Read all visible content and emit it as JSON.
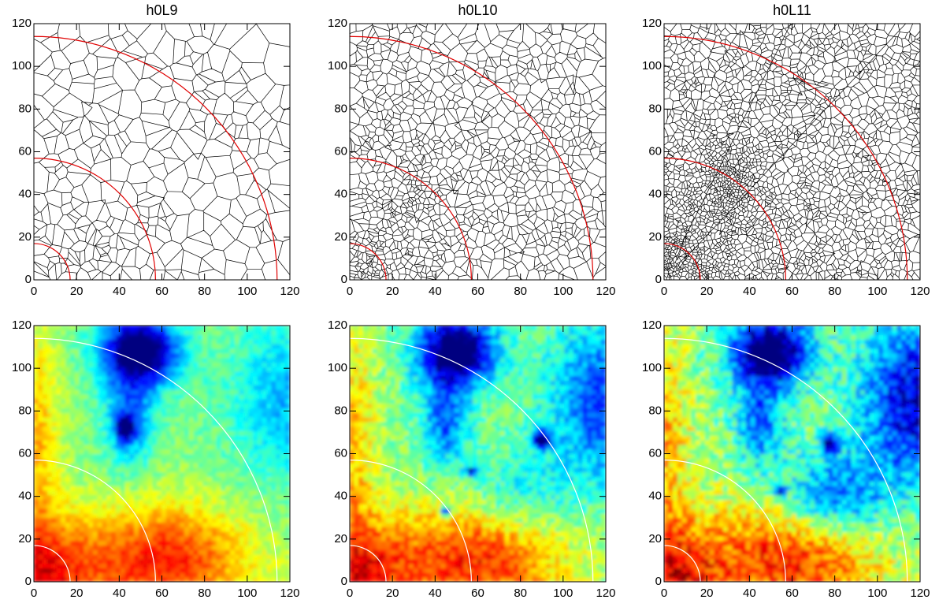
{
  "chart_data": [
    {
      "type": "mesh",
      "title": "h0L9",
      "points": 320,
      "xlim": [
        0,
        120
      ],
      "ylim": [
        0,
        120
      ],
      "xticks": [
        0,
        20,
        40,
        60,
        80,
        100,
        120
      ],
      "yticks": [
        0,
        20,
        40,
        60,
        80,
        100,
        120
      ],
      "circle_radii": [
        17,
        57,
        114
      ],
      "circle_color": "#e00000"
    },
    {
      "type": "mesh",
      "title": "h0L10",
      "points": 1100,
      "xlim": [
        0,
        120
      ],
      "ylim": [
        0,
        120
      ],
      "xticks": [
        0,
        20,
        40,
        60,
        80,
        100,
        120
      ],
      "yticks": [
        0,
        20,
        40,
        60,
        80,
        100,
        120
      ],
      "circle_radii": [
        17,
        57,
        114
      ],
      "circle_color": "#e00000"
    },
    {
      "type": "mesh",
      "title": "h0L11",
      "points": 2400,
      "xlim": [
        0,
        120
      ],
      "ylim": [
        0,
        120
      ],
      "xticks": [
        0,
        20,
        40,
        60,
        80,
        100,
        120
      ],
      "yticks": [
        0,
        20,
        40,
        60,
        80,
        100,
        120
      ],
      "circle_radii": [
        17,
        57,
        114
      ],
      "circle_color": "#e00000"
    },
    {
      "type": "heatmap",
      "xlim": [
        0,
        120
      ],
      "ylim": [
        0,
        120
      ],
      "xticks": [
        0,
        20,
        40,
        60,
        80,
        100,
        120
      ],
      "yticks": [
        0,
        20,
        40,
        60,
        80,
        100,
        120
      ],
      "circle_radii": [
        17,
        57,
        114
      ],
      "circle_color": "#ffffff"
    },
    {
      "type": "heatmap",
      "xlim": [
        0,
        120
      ],
      "ylim": [
        0,
        120
      ],
      "xticks": [
        0,
        20,
        40,
        60,
        80,
        100,
        120
      ],
      "yticks": [
        0,
        20,
        40,
        60,
        80,
        100,
        120
      ],
      "circle_radii": [
        17,
        57,
        114
      ],
      "circle_color": "#ffffff"
    },
    {
      "type": "heatmap",
      "xlim": [
        0,
        120
      ],
      "ylim": [
        0,
        120
      ],
      "xticks": [
        0,
        20,
        40,
        60,
        80,
        100,
        120
      ],
      "yticks": [
        0,
        20,
        40,
        60,
        80,
        100,
        120
      ],
      "circle_radii": [
        17,
        57,
        114
      ],
      "circle_color": "#ffffff"
    }
  ]
}
